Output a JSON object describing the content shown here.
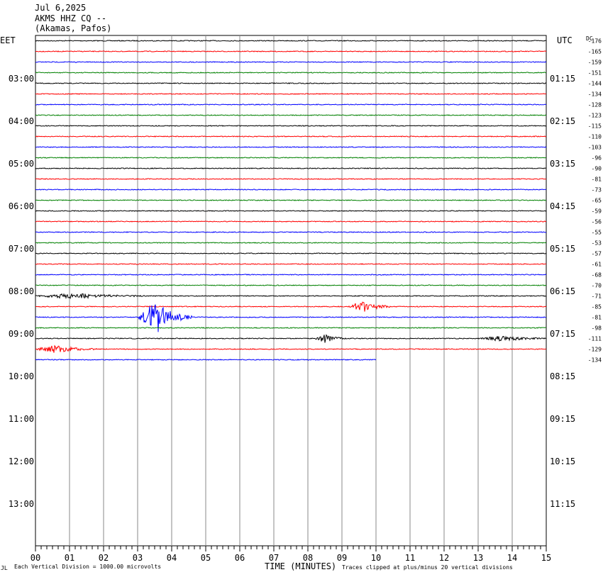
{
  "header": {
    "date": "Jul 6,2025",
    "station": "AKMS HHZ CQ --",
    "location": "(Akamas, Pafos)"
  },
  "left_timezone": "EET",
  "right_timezone": "UTC",
  "dc_label": "DC",
  "footer": {
    "scale_note": "Each Vertical Division = 1000.00 microvolts",
    "x_axis_title": "TIME (MINUTES)",
    "clip_note": "Traces clipped at plus/minus 20 vertical divisions",
    "corner_mark": "JL"
  },
  "chart_data": {
    "type": "line",
    "title": "AKMS HHZ CQ --",
    "xlabel": "TIME (MINUTES)",
    "xlim": [
      0,
      15
    ],
    "x_ticks": [
      "00",
      "01",
      "02",
      "03",
      "04",
      "05",
      "06",
      "07",
      "08",
      "09",
      "10",
      "11",
      "12",
      "13",
      "14",
      "15"
    ],
    "rows_total": 48,
    "row_interval_minutes": 15,
    "left_hour_labels": [
      "03:00",
      "04:00",
      "05:00",
      "06:00",
      "07:00",
      "08:00",
      "09:00",
      "10:00",
      "11:00",
      "12:00",
      "13:00"
    ],
    "right_hour_labels": [
      "01:15",
      "02:15",
      "03:15",
      "04:15",
      "05:15",
      "06:15",
      "07:15",
      "08:15",
      "09:15",
      "10:15",
      "11:15"
    ],
    "trace_colors": [
      "#000000",
      "#ff0000",
      "#0000ff",
      "#008000"
    ],
    "dc_offsets": [
      -176,
      -165,
      -159,
      -151,
      -144,
      -134,
      -128,
      -123,
      -115,
      -110,
      -103,
      -96,
      -90,
      -81,
      -73,
      -65,
      -59,
      -56,
      -55,
      -53,
      -57,
      -61,
      -68,
      -70,
      -71,
      -85,
      -81,
      -98,
      -111,
      -129,
      -134
    ],
    "traces_recorded": 31,
    "last_trace_end_minute": 10.0,
    "events": [
      {
        "trace": 24,
        "start_min": 0.0,
        "end_min": 3.2,
        "amplitude": 0.25
      },
      {
        "trace": 25,
        "start_min": 9.2,
        "end_min": 10.4,
        "amplitude": 0.6
      },
      {
        "trace": 26,
        "start_min": 3.0,
        "end_min": 4.6,
        "amplitude": 1.7
      },
      {
        "trace": 28,
        "start_min": 8.2,
        "end_min": 9.1,
        "amplitude": 0.4
      },
      {
        "trace": 28,
        "start_min": 13.0,
        "end_min": 15.0,
        "amplitude": 0.25
      },
      {
        "trace": 29,
        "start_min": 0.0,
        "end_min": 1.8,
        "amplitude": 0.4
      }
    ]
  }
}
